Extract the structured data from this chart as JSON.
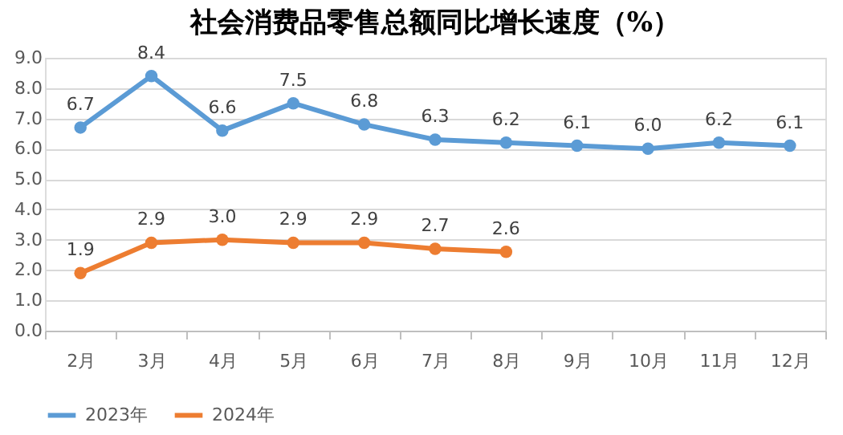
{
  "chart_data": {
    "type": "line",
    "title": "社会消费品零售总额同比增长速度（%）",
    "categories": [
      "2月",
      "3月",
      "4月",
      "5月",
      "6月",
      "7月",
      "8月",
      "9月",
      "10月",
      "11月",
      "12月"
    ],
    "series": [
      {
        "name": "2023年",
        "color": "#5b9bd5",
        "values": [
          6.7,
          8.4,
          6.6,
          7.5,
          6.8,
          6.3,
          6.2,
          6.1,
          6.0,
          6.2,
          6.1
        ],
        "value_labels": [
          "6.7",
          "8.4",
          "6.6",
          "7.5",
          "6.8",
          "6.3",
          "6.2",
          "6.1",
          "6.0",
          "6.2",
          "6.1"
        ]
      },
      {
        "name": "2024年",
        "color": "#ed7d31",
        "values": [
          1.9,
          2.9,
          3.0,
          2.9,
          2.9,
          2.7,
          2.6,
          null,
          null,
          null,
          null
        ],
        "value_labels": [
          "1.9",
          "2.9",
          "3.0",
          "2.9",
          "2.9",
          "2.7",
          "2.6",
          null,
          null,
          null,
          null
        ]
      }
    ],
    "ylim": [
      0,
      9
    ],
    "yticks": [
      {
        "value": 0,
        "label": "0.0"
      },
      {
        "value": 1,
        "label": "1.0"
      },
      {
        "value": 2,
        "label": "2.0"
      },
      {
        "value": 3,
        "label": "3.0"
      },
      {
        "value": 4,
        "label": "4.0"
      },
      {
        "value": 5,
        "label": "5.0"
      },
      {
        "value": 6,
        "label": "6.0"
      },
      {
        "value": 7,
        "label": "7.0"
      },
      {
        "value": 8,
        "label": "8.0"
      },
      {
        "value": 9,
        "label": "9.0"
      }
    ],
    "grid": "y",
    "legend": "bottom",
    "marker": "circle",
    "line_style": "solid"
  }
}
